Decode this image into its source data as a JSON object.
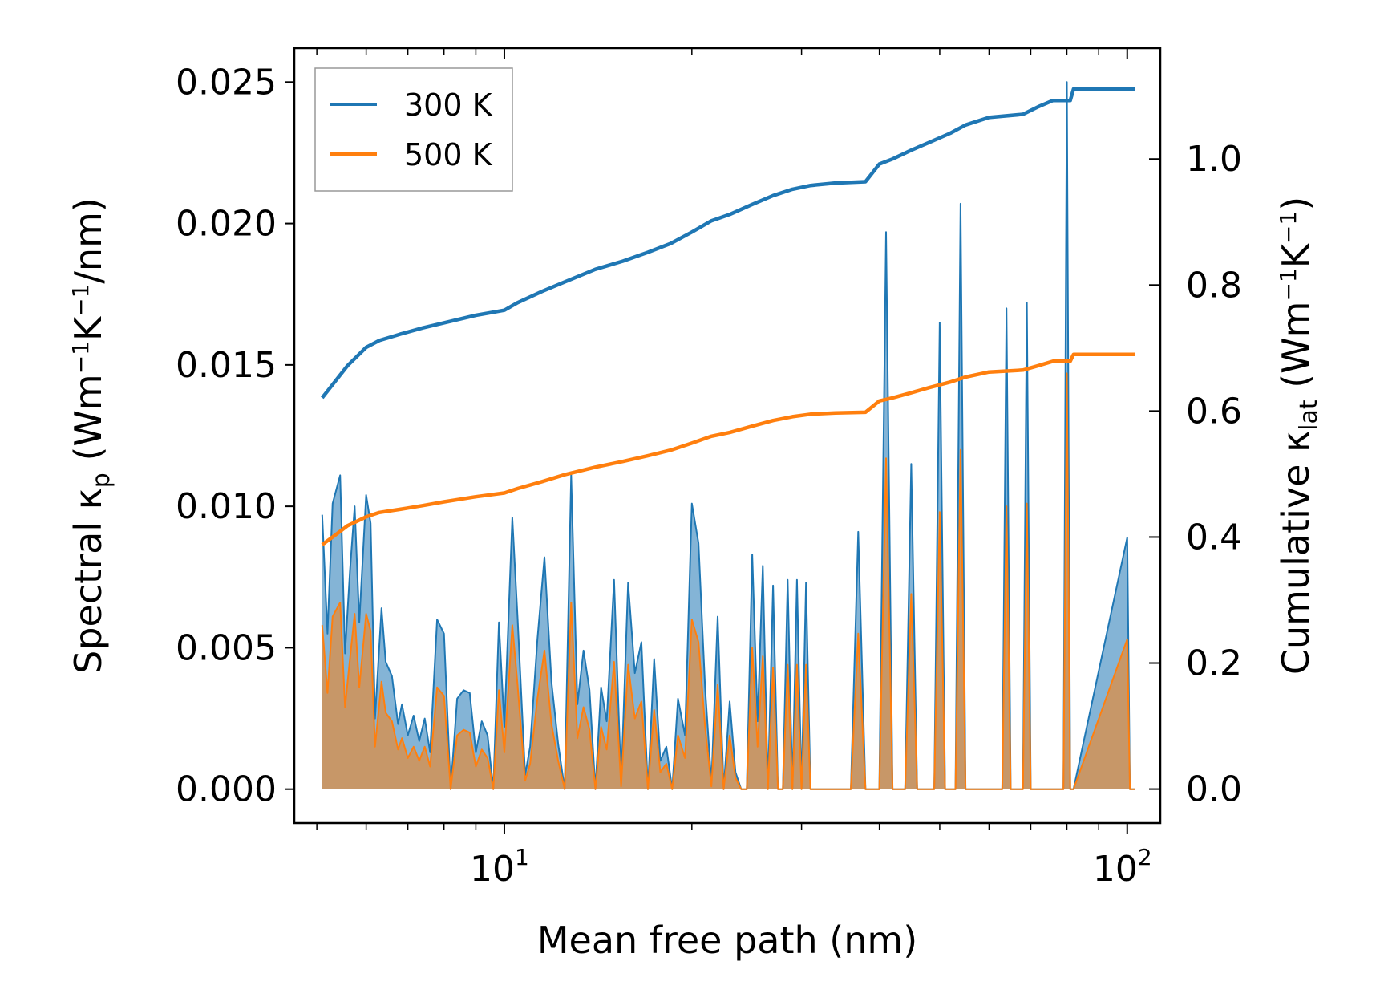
{
  "chart_data": {
    "type": "line",
    "xscale": "log",
    "xlim": [
      4.6,
      113
    ],
    "x_ticks": [
      {
        "value": 10,
        "base": "10",
        "exp": "1"
      },
      {
        "value": 100,
        "base": "10",
        "exp": "2"
      }
    ],
    "xlabel": "Mean free path (nm)",
    "ylabel_left": {
      "main": "Spectral κ",
      "sub": "p",
      "units_open": " (Wm",
      "exp1": "−1",
      "mid": "K",
      "exp2": "−1",
      "units_close": "/nm)"
    },
    "ylabel_right": {
      "main": "Cumulative κ",
      "sub": "lat",
      "units_open": " (Wm",
      "exp1": "−1",
      "mid": "K",
      "exp2": "−1",
      "units_close": ")"
    },
    "ylim_left": [
      -0.0012,
      0.0262
    ],
    "ylim_right": [
      -0.054,
      1.176
    ],
    "left_ticks": [
      "0.000",
      "0.005",
      "0.010",
      "0.015",
      "0.020",
      "0.025"
    ],
    "right_ticks": [
      "0.0",
      "0.2",
      "0.4",
      "0.6",
      "0.8",
      "1.0"
    ],
    "legend": {
      "position": "top-left",
      "entries": [
        "300 K",
        "500 K"
      ]
    },
    "spectral_x": [
      5.1,
      5.2,
      5.3,
      5.45,
      5.55,
      5.65,
      5.75,
      5.85,
      6.0,
      6.1,
      6.2,
      6.35,
      6.45,
      6.6,
      6.75,
      6.85,
      7.0,
      7.15,
      7.3,
      7.45,
      7.6,
      7.8,
      8.0,
      8.2,
      8.4,
      8.6,
      8.8,
      9.0,
      9.2,
      9.4,
      9.6,
      9.8,
      10.0,
      10.3,
      10.5,
      10.8,
      11.0,
      11.3,
      11.6,
      11.9,
      12.2,
      12.5,
      12.8,
      13.1,
      13.4,
      13.7,
      14.0,
      14.3,
      14.6,
      15.0,
      15.4,
      15.8,
      16.2,
      16.6,
      17.0,
      17.4,
      17.8,
      18.2,
      18.6,
      19.0,
      19.5,
      20.0,
      20.5,
      21.0,
      21.5,
      22.0,
      22.5,
      23.0,
      23.5,
      24.0,
      24.5,
      25.0,
      25.5,
      26.0,
      26.5,
      27.0,
      27.5,
      28.0,
      28.5,
      29.0,
      29.5,
      30.0,
      30.5,
      31.0,
      31.5,
      32.0,
      32.5,
      33,
      36,
      37,
      38,
      40,
      41,
      42,
      44,
      45,
      46,
      49,
      50,
      51,
      53,
      54,
      55,
      63,
      64,
      65,
      68,
      69,
      70,
      79,
      80,
      81,
      82,
      100,
      101,
      103
    ],
    "series": [
      {
        "name": "300 K",
        "color": "#1f77b4",
        "spectral": [
          0.0097,
          0.0055,
          0.0101,
          0.0111,
          0.0048,
          0.0077,
          0.01,
          0.0059,
          0.0104,
          0.0094,
          0.0025,
          0.0064,
          0.0045,
          0.004,
          0.0023,
          0.003,
          0.0019,
          0.0026,
          0.0017,
          0.0025,
          0.0013,
          0.006,
          0.0055,
          0.0,
          0.0032,
          0.0035,
          0.0034,
          0.0013,
          0.0024,
          0.0019,
          0.0,
          0.0059,
          0.0022,
          0.0096,
          0.0061,
          0.0005,
          0.0015,
          0.0053,
          0.0082,
          0.0038,
          0.0016,
          0.0,
          0.0111,
          0.003,
          0.0049,
          0.0035,
          0.0,
          0.0036,
          0.0024,
          0.0074,
          0.0002,
          0.0073,
          0.0041,
          0.0052,
          0.0,
          0.0046,
          0.001,
          0.0015,
          0.0,
          0.0032,
          0.0019,
          0.0101,
          0.0087,
          0.0036,
          0.0002,
          0.0061,
          0.0,
          0.0031,
          0.0006,
          0.0,
          0.0,
          0.0083,
          0.0024,
          0.0079,
          0.0,
          0.0072,
          0.0,
          0.0,
          0.0074,
          0.0,
          0.0074,
          0.0,
          0.0073,
          0.0,
          0.0,
          0.0,
          0.0,
          0.0,
          0.0,
          0.0091,
          0.0,
          0.0,
          0.0197,
          0.0,
          0.0,
          0.0115,
          0.0,
          0.0,
          0.0165,
          0.0,
          0.0,
          0.0207,
          0.0,
          0.0,
          0.017,
          0.0,
          0.0,
          0.0172,
          0.0,
          0.0,
          0.025,
          0.0,
          0.0,
          0.0089,
          0.0,
          0.0
        ],
        "cumulative_x": [
          5.1,
          5.3,
          5.6,
          6.0,
          6.3,
          6.8,
          7.4,
          8.0,
          9.0,
          10.0,
          10.5,
          11.5,
          12.5,
          14.0,
          15.5,
          17.0,
          18.5,
          20.0,
          21.5,
          23.0,
          25.0,
          27.0,
          29.0,
          31.0,
          34.0,
          38.0,
          40.0,
          42.0,
          45.0,
          48.0,
          52.0,
          55.0,
          60.0,
          68.0,
          72.0,
          76.0,
          81.0,
          82.0,
          100.0,
          103.0
        ],
        "cumulative": [
          0.621,
          0.642,
          0.672,
          0.701,
          0.712,
          0.722,
          0.732,
          0.74,
          0.752,
          0.76,
          0.772,
          0.79,
          0.805,
          0.825,
          0.838,
          0.852,
          0.866,
          0.884,
          0.902,
          0.912,
          0.928,
          0.942,
          0.952,
          0.958,
          0.962,
          0.964,
          0.992,
          1.0,
          1.014,
          1.026,
          1.041,
          1.054,
          1.066,
          1.071,
          1.083,
          1.093,
          1.093,
          1.111,
          1.111,
          1.111
        ]
      },
      {
        "name": "500 K",
        "color": "#ff7f0e",
        "spectral": [
          0.0058,
          0.0034,
          0.0061,
          0.0066,
          0.0029,
          0.0046,
          0.0062,
          0.0036,
          0.0062,
          0.0056,
          0.0015,
          0.0038,
          0.0027,
          0.0024,
          0.0014,
          0.0018,
          0.0011,
          0.0015,
          0.001,
          0.0015,
          0.0008,
          0.0036,
          0.0033,
          0.0,
          0.0019,
          0.0021,
          0.002,
          0.0008,
          0.0014,
          0.0011,
          0.0,
          0.0035,
          0.0013,
          0.0058,
          0.0037,
          0.0003,
          0.0009,
          0.0032,
          0.0049,
          0.0023,
          0.001,
          0.0,
          0.0066,
          0.0018,
          0.0029,
          0.0021,
          0.0,
          0.0022,
          0.0014,
          0.0045,
          0.0001,
          0.0044,
          0.0025,
          0.0031,
          0.0,
          0.0028,
          0.0006,
          0.0009,
          0.0,
          0.0019,
          0.0011,
          0.006,
          0.0052,
          0.0022,
          0.0001,
          0.0037,
          0.0,
          0.0019,
          0.0004,
          0.0,
          0.0,
          0.005,
          0.0015,
          0.0047,
          0.0,
          0.0043,
          0.0,
          0.0,
          0.0044,
          0.0,
          0.0044,
          0.0,
          0.0044,
          0.0,
          0.0,
          0.0,
          0.0,
          0.0,
          0.0,
          0.0055,
          0.0,
          0.0,
          0.0117,
          0.0,
          0.0,
          0.0069,
          0.0,
          0.0,
          0.0098,
          0.0,
          0.0,
          0.012,
          0.0,
          0.0,
          0.01,
          0.0,
          0.0,
          0.0101,
          0.0,
          0.0,
          0.0147,
          0.0,
          0.0,
          0.0053,
          0.0,
          0.0
        ],
        "cumulative_x": [
          5.1,
          5.3,
          5.6,
          6.0,
          6.3,
          6.8,
          7.4,
          8.0,
          9.0,
          10.0,
          10.5,
          11.5,
          12.5,
          14.0,
          15.5,
          17.0,
          18.5,
          20.0,
          21.5,
          23.0,
          25.0,
          27.0,
          29.0,
          31.0,
          34.0,
          38.0,
          40.0,
          42.0,
          45.0,
          48.0,
          52.0,
          55.0,
          60.0,
          68.0,
          72.0,
          76.0,
          81.0,
          82.0,
          100.0,
          103.0
        ],
        "cumulative": [
          0.388,
          0.4,
          0.418,
          0.432,
          0.439,
          0.444,
          0.45,
          0.456,
          0.464,
          0.47,
          0.477,
          0.488,
          0.499,
          0.511,
          0.52,
          0.529,
          0.538,
          0.549,
          0.56,
          0.566,
          0.576,
          0.585,
          0.591,
          0.595,
          0.597,
          0.598,
          0.616,
          0.621,
          0.629,
          0.637,
          0.646,
          0.654,
          0.662,
          0.665,
          0.672,
          0.679,
          0.679,
          0.69,
          0.69,
          0.69
        ]
      }
    ]
  }
}
